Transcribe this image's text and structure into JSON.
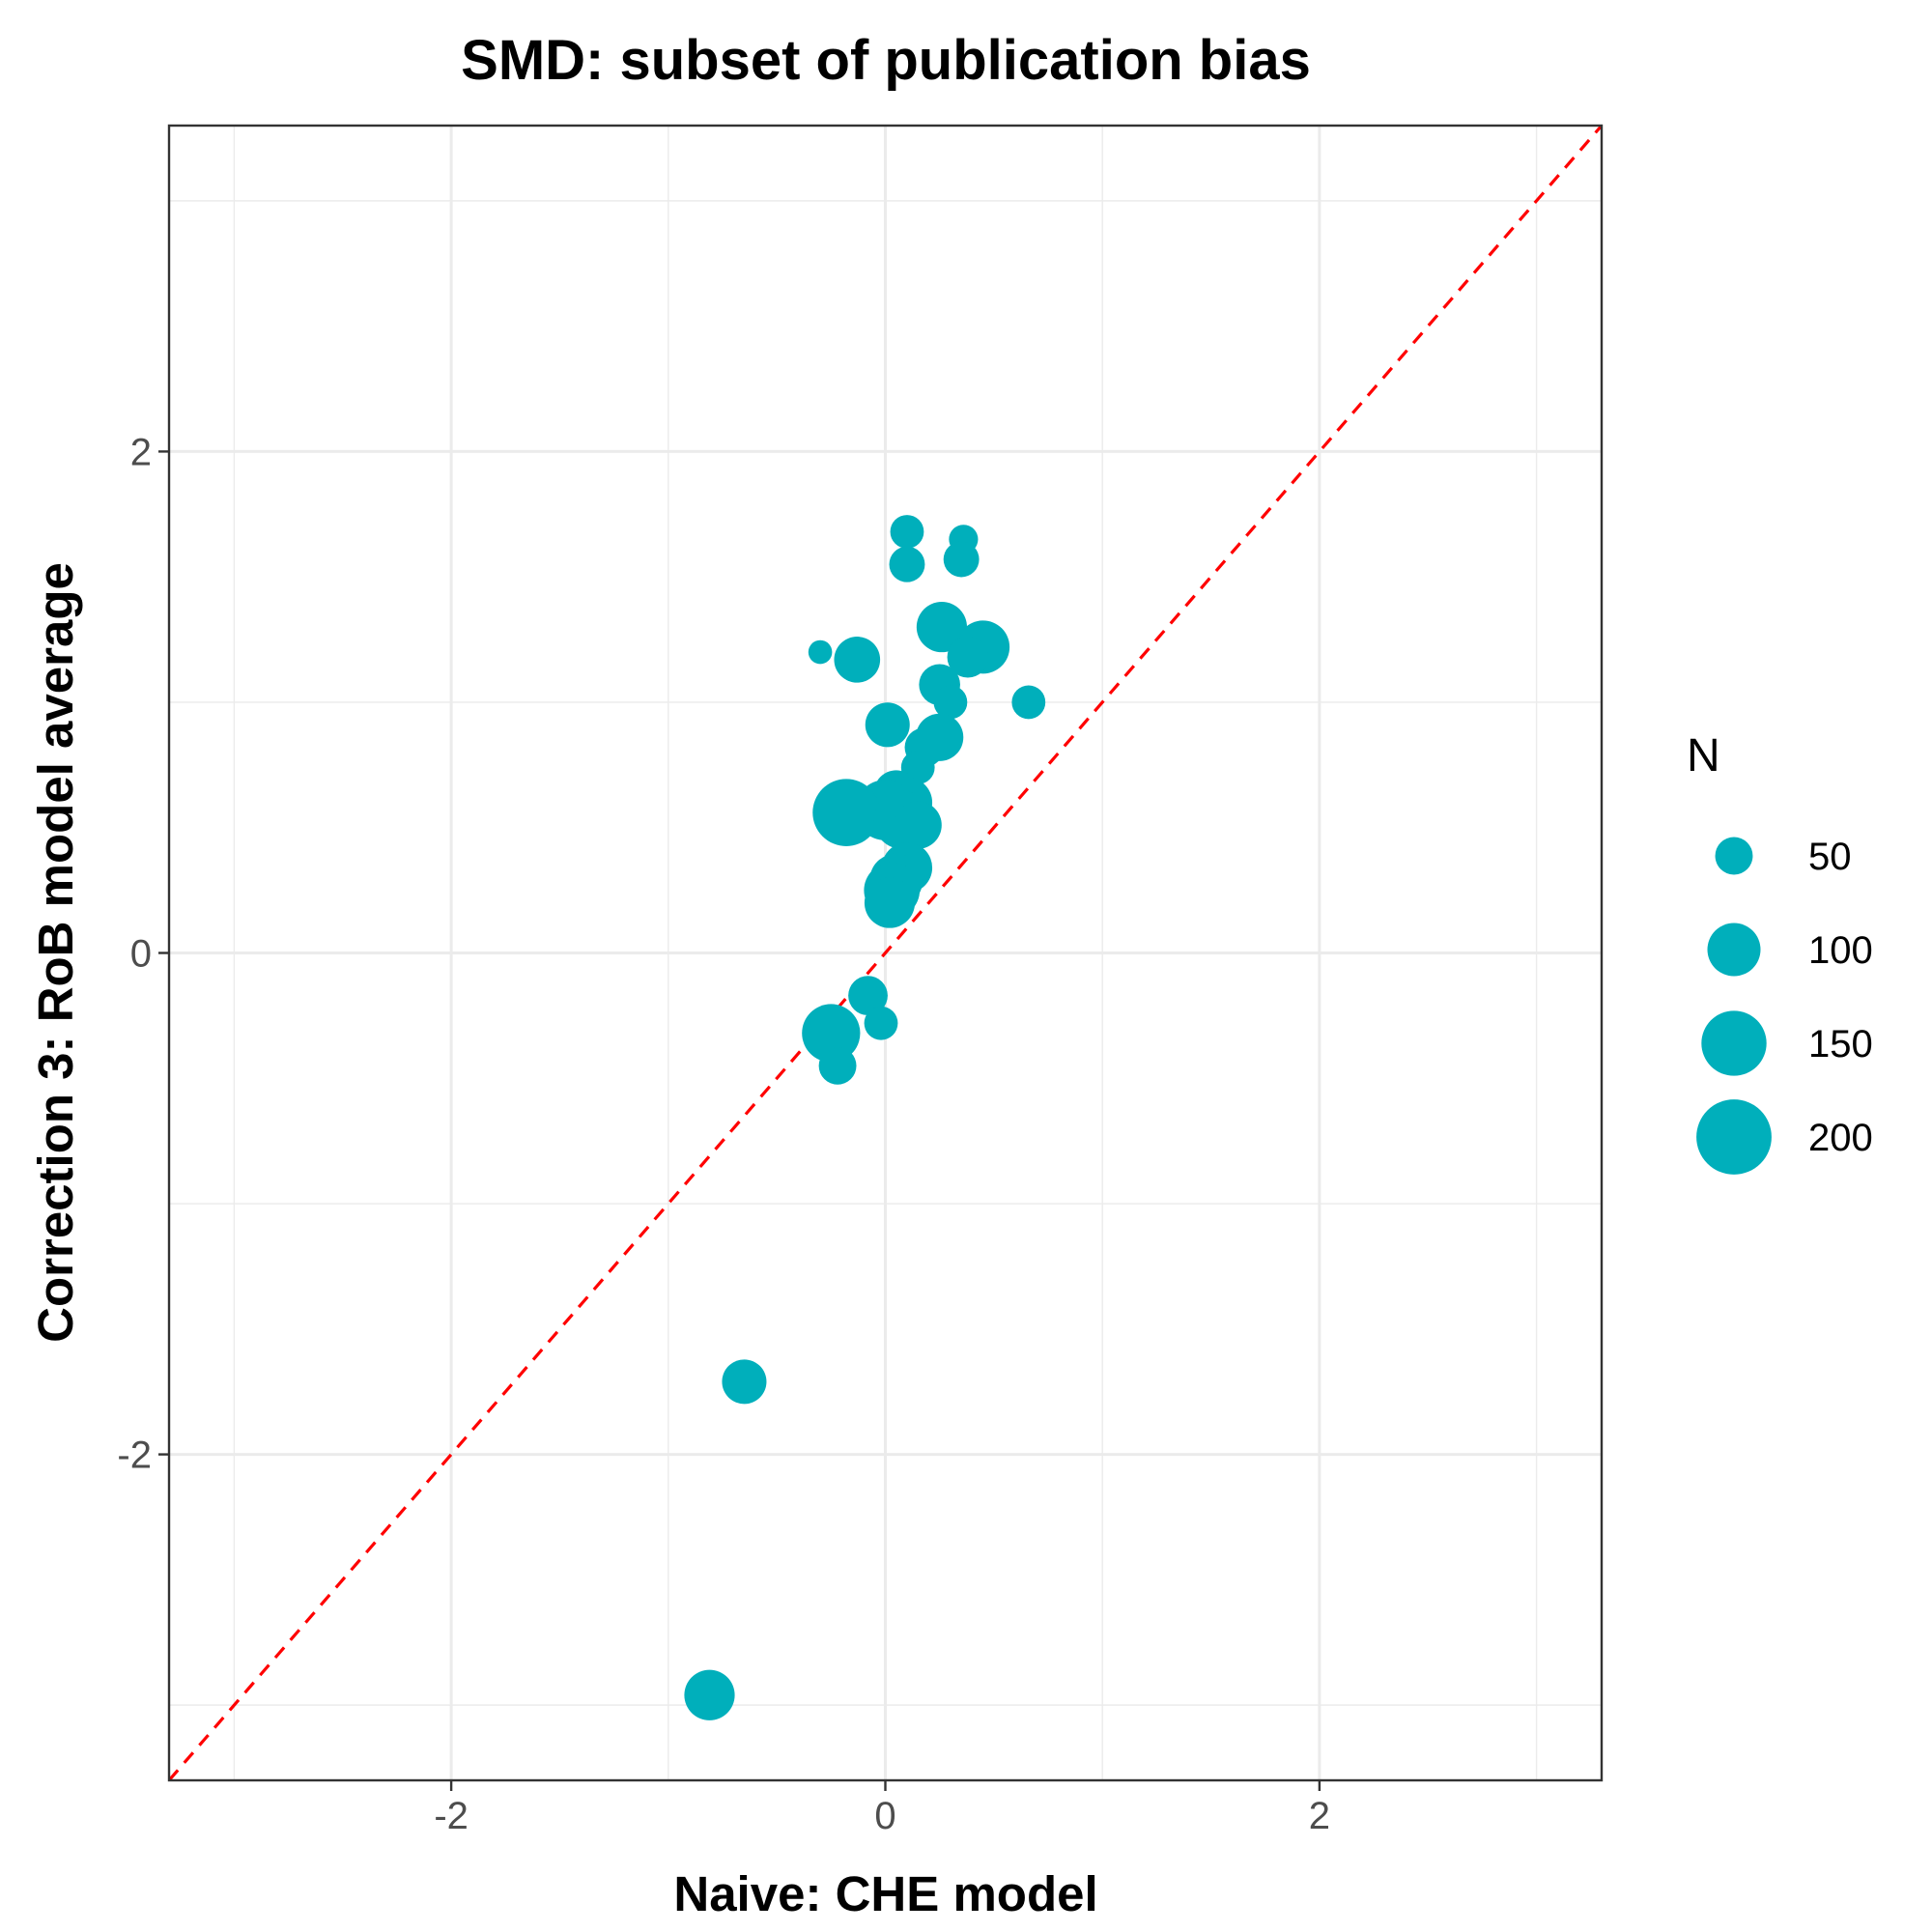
{
  "chart_data": {
    "type": "scatter",
    "title": "SMD: subset of publication bias",
    "xlabel": "Naive: CHE model",
    "ylabel": "Correction 3: RoB model average",
    "xlim": [
      -3.3,
      3.3
    ],
    "ylim": [
      -3.3,
      3.3
    ],
    "x_major_ticks": [
      -2,
      0,
      2
    ],
    "x_tick_labels": [
      "-2",
      "0",
      "2"
    ],
    "y_major_ticks": [
      -2,
      0,
      2
    ],
    "y_tick_labels": [
      "-2",
      "0",
      "2"
    ],
    "grid": true,
    "point_color": "#00AFBB",
    "reference_line": {
      "slope": 1,
      "intercept": 0,
      "style": "dashed",
      "color": "#FF0000"
    },
    "legend": {
      "title": "N",
      "placement": "right",
      "entries": [
        {
          "label": "50",
          "value": 50
        },
        {
          "label": "100",
          "value": 100
        },
        {
          "label": "150",
          "value": 150
        },
        {
          "label": "200",
          "value": 200
        }
      ]
    },
    "size_variable": "N",
    "points": [
      {
        "x": 0.1,
        "y": 1.68,
        "n": 40
      },
      {
        "x": 0.36,
        "y": 1.65,
        "n": 30
      },
      {
        "x": 0.1,
        "y": 1.55,
        "n": 45
      },
      {
        "x": 0.35,
        "y": 1.57,
        "n": 45
      },
      {
        "x": 0.26,
        "y": 1.3,
        "n": 90
      },
      {
        "x": 0.45,
        "y": 1.22,
        "n": 100
      },
      {
        "x": 0.38,
        "y": 1.18,
        "n": 60
      },
      {
        "x": -0.3,
        "y": 1.2,
        "n": 20
      },
      {
        "x": -0.13,
        "y": 1.17,
        "n": 75
      },
      {
        "x": 0.25,
        "y": 1.07,
        "n": 60
      },
      {
        "x": 0.3,
        "y": 1.0,
        "n": 40
      },
      {
        "x": 0.66,
        "y": 1.0,
        "n": 40
      },
      {
        "x": 0.01,
        "y": 0.91,
        "n": 70
      },
      {
        "x": 0.25,
        "y": 0.86,
        "n": 80
      },
      {
        "x": 0.18,
        "y": 0.82,
        "n": 55
      },
      {
        "x": 0.15,
        "y": 0.74,
        "n": 40
      },
      {
        "x": 0.05,
        "y": 0.64,
        "n": 70
      },
      {
        "x": 0.1,
        "y": 0.6,
        "n": 90
      },
      {
        "x": 0.0,
        "y": 0.57,
        "n": 130
      },
      {
        "x": -0.18,
        "y": 0.56,
        "n": 160
      },
      {
        "x": 0.08,
        "y": 0.53,
        "n": 120
      },
      {
        "x": 0.15,
        "y": 0.51,
        "n": 80
      },
      {
        "x": 0.1,
        "y": 0.34,
        "n": 90
      },
      {
        "x": 0.05,
        "y": 0.29,
        "n": 100
      },
      {
        "x": 0.03,
        "y": 0.25,
        "n": 110
      },
      {
        "x": 0.02,
        "y": 0.2,
        "n": 90
      },
      {
        "x": -0.08,
        "y": -0.17,
        "n": 55
      },
      {
        "x": -0.25,
        "y": -0.32,
        "n": 120
      },
      {
        "x": -0.02,
        "y": -0.28,
        "n": 40
      },
      {
        "x": -0.22,
        "y": -0.45,
        "n": 50
      },
      {
        "x": -0.65,
        "y": -1.71,
        "n": 70
      },
      {
        "x": -0.81,
        "y": -2.96,
        "n": 90
      }
    ]
  }
}
